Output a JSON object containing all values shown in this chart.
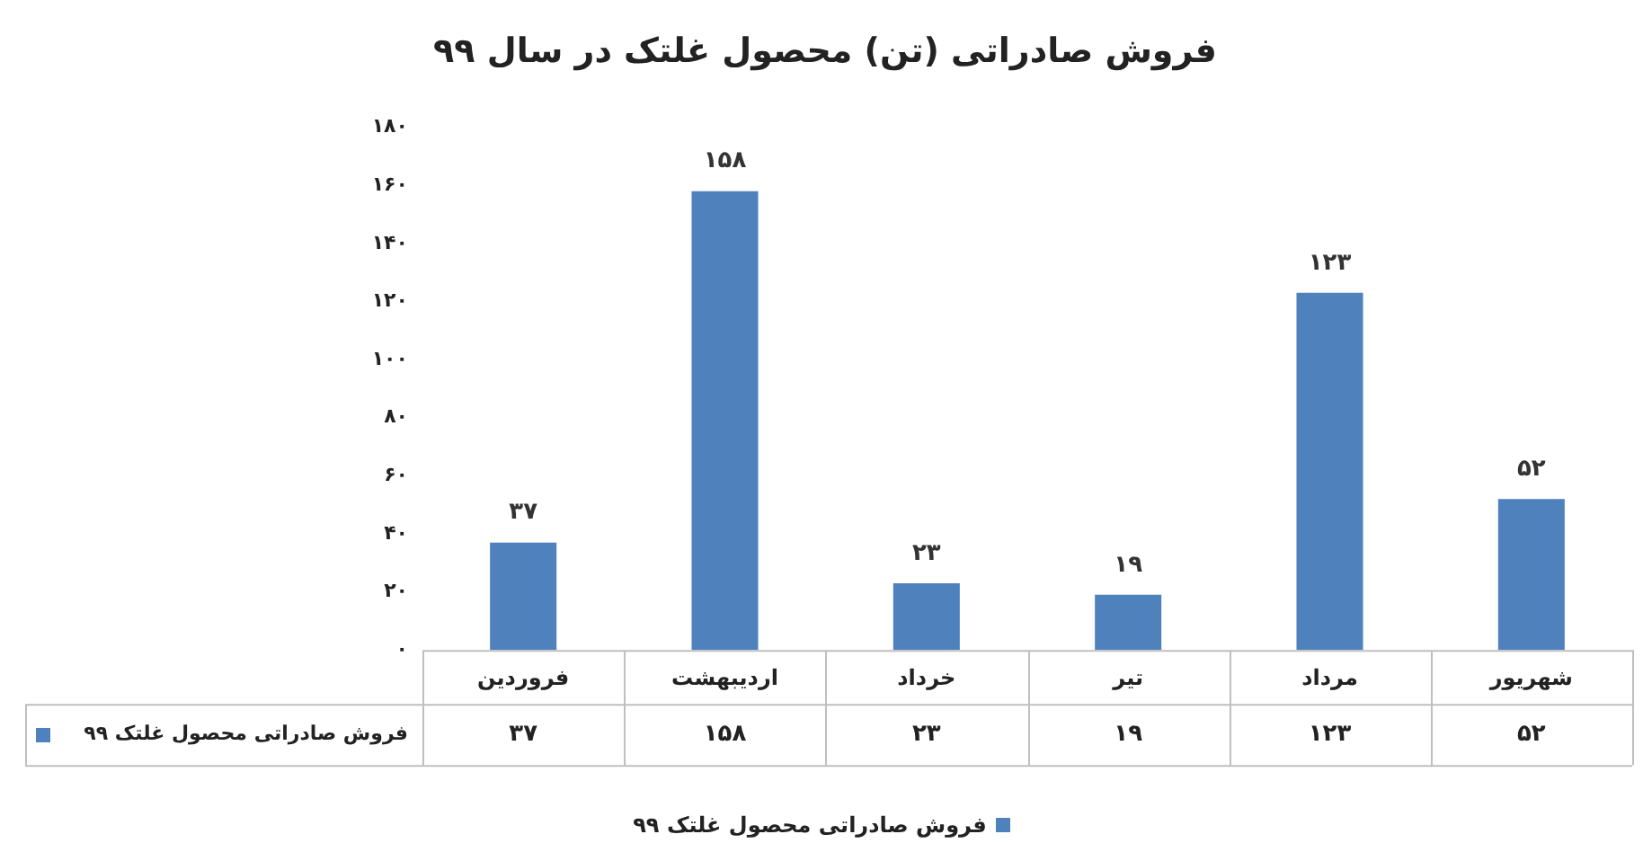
{
  "chart_data": {
    "type": "bar",
    "title": "فروش صادراتی (تن) محصول غلتک در سال ۹۹",
    "categories": [
      "فروردین",
      "اردیبهشت",
      "خرداد",
      "تیر",
      "مرداد",
      "شهریور"
    ],
    "series": [
      {
        "name": "فروش صادراتی محصول غلتک ۹۹",
        "color": "#4f81bd",
        "values": [
          37,
          158,
          23,
          19,
          123,
          52
        ],
        "value_labels": [
          "۳۷",
          "۱۵۸",
          "۲۳",
          "۱۹",
          "۱۲۳",
          "۵۲"
        ]
      }
    ],
    "ylim": [
      0,
      180
    ],
    "yticks": [
      {
        "value": 0,
        "label": "۰"
      },
      {
        "value": 20,
        "label": "۲۰"
      },
      {
        "value": 40,
        "label": "۴۰"
      },
      {
        "value": 60,
        "label": "۶۰"
      },
      {
        "value": 80,
        "label": "۸۰"
      },
      {
        "value": 100,
        "label": "۱۰۰"
      },
      {
        "value": 120,
        "label": "۱۲۰"
      },
      {
        "value": 140,
        "label": "۱۴۰"
      },
      {
        "value": 160,
        "label": "۱۶۰"
      },
      {
        "value": 180,
        "label": "۱۸۰"
      }
    ],
    "grid": false,
    "legend": "bottom"
  }
}
